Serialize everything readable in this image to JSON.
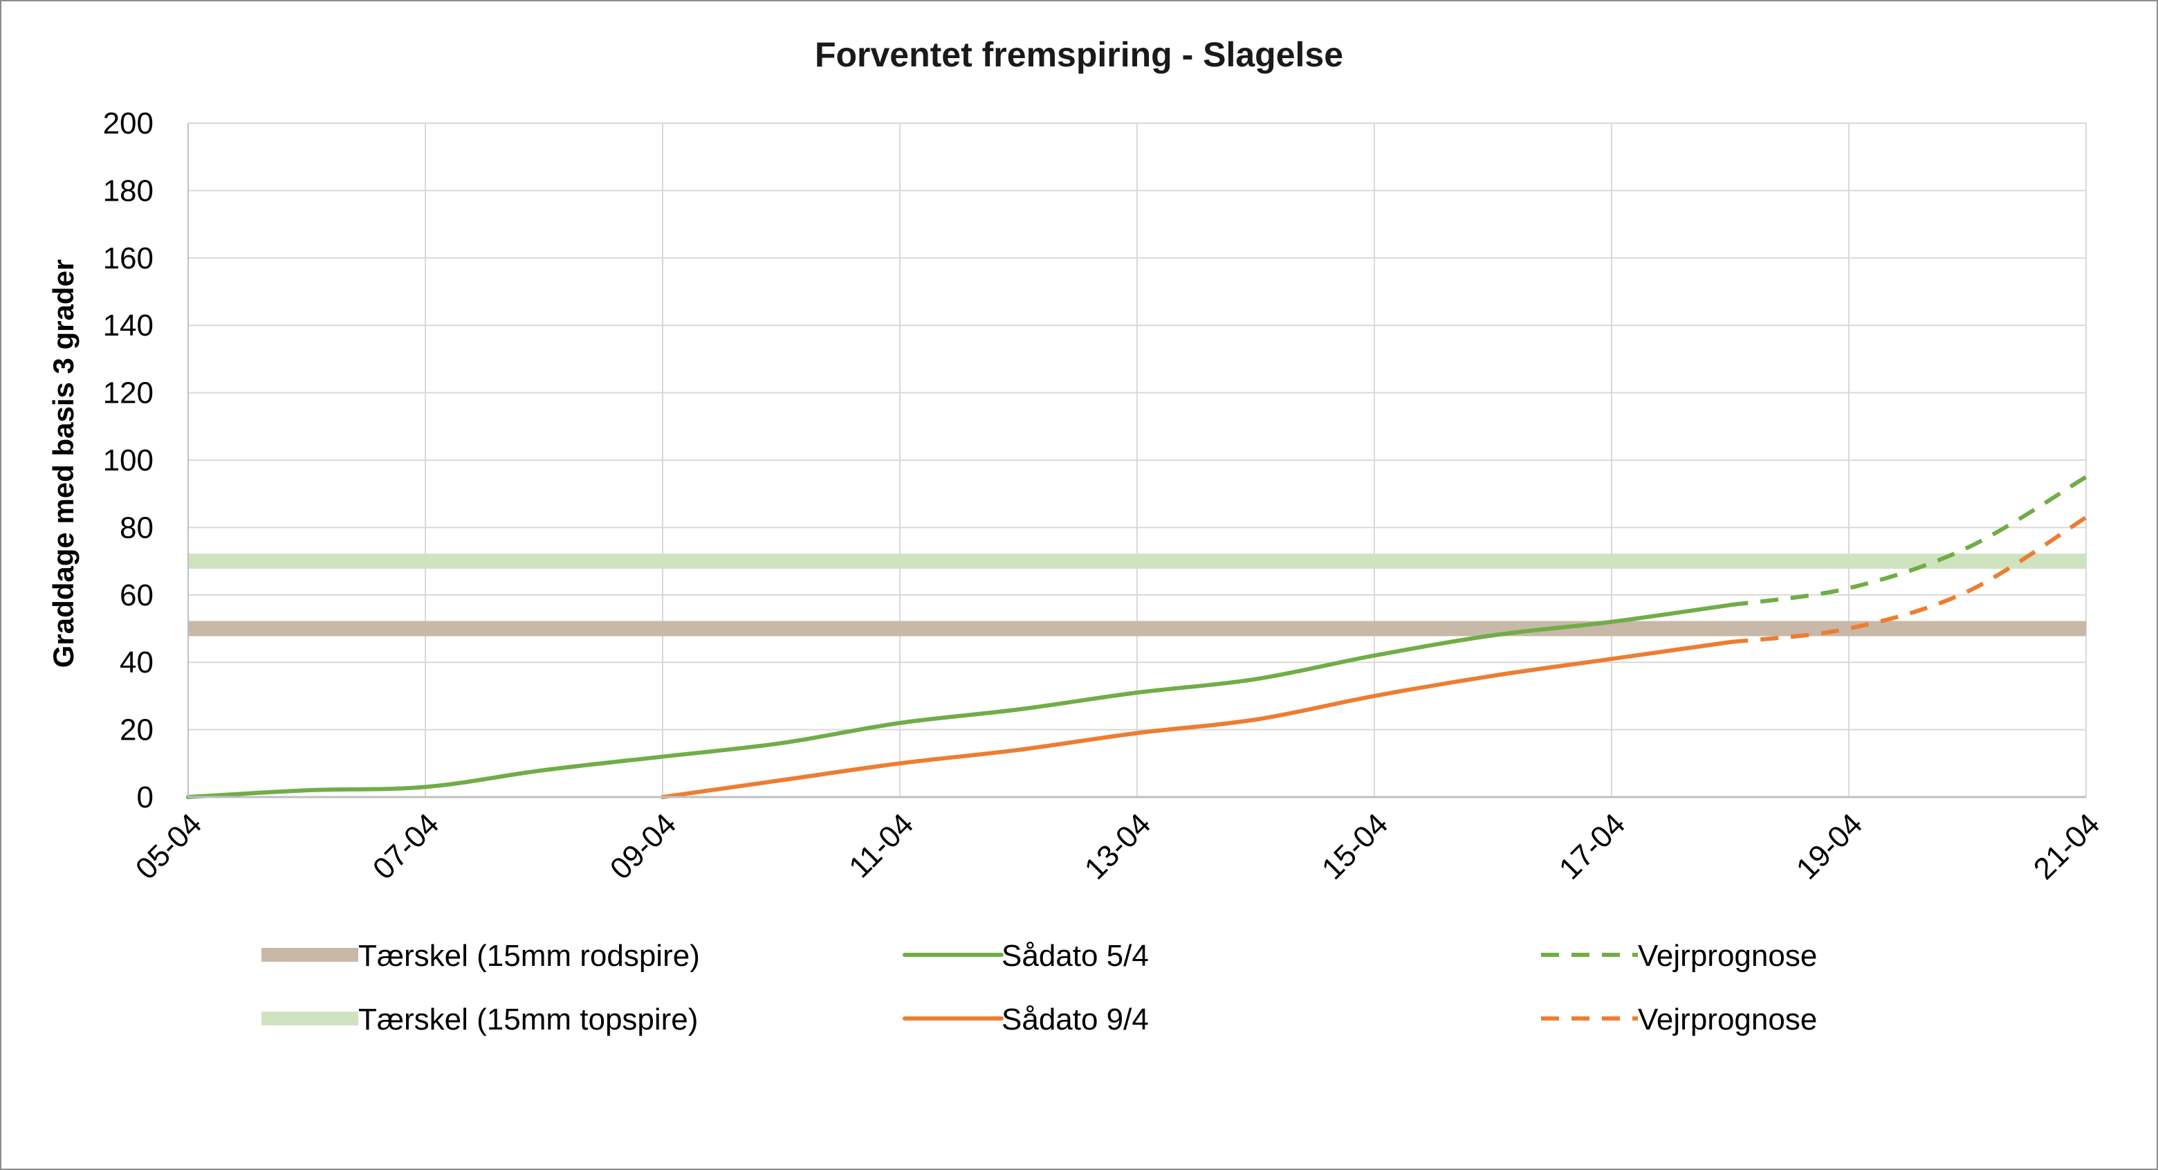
{
  "chart_data": {
    "type": "line",
    "title": "Forventet fremspiring - Slagelse",
    "ylabel": "Graddage med basis 3 grader",
    "xlabel": "",
    "x_ticks": [
      "05-04",
      "07-04",
      "09-04",
      "11-04",
      "13-04",
      "15-04",
      "17-04",
      "19-04",
      "21-04"
    ],
    "xlim": [
      "05-04",
      "21-04"
    ],
    "ylim": [
      0,
      200
    ],
    "y_ticks": [
      "0",
      "20",
      "40",
      "60",
      "80",
      "100",
      "120",
      "140",
      "160",
      "180",
      "200"
    ],
    "grid": true,
    "legend_placement": "bottom",
    "colors": {
      "brown_threshold": "#c8b8a8",
      "green_threshold": "#cfe3c0",
      "green_line": "#70ad47",
      "orange_line": "#ed7d31",
      "grid": "#d9d9d9",
      "axis": "#bfbfbf"
    },
    "series": [
      {
        "name": "Tærskel (15mm rodspire)",
        "style": "thick",
        "color": "#c8b8a8",
        "points": [
          [
            "05-04",
            50
          ],
          [
            "21-04",
            50
          ]
        ]
      },
      {
        "name": "Tærskel (15mm topspire)",
        "style": "thick",
        "color": "#cfe3c0",
        "points": [
          [
            "05-04",
            70
          ],
          [
            "21-04",
            70
          ]
        ]
      },
      {
        "name": "Sådato 5/4",
        "style": "solid",
        "color": "#70ad47",
        "points": [
          [
            "05-04",
            0
          ],
          [
            "06-04",
            2
          ],
          [
            "07-04",
            3
          ],
          [
            "08-04",
            8
          ],
          [
            "09-04",
            12
          ],
          [
            "10-04",
            16
          ],
          [
            "11-04",
            22
          ],
          [
            "12-04",
            26
          ],
          [
            "13-04",
            31
          ],
          [
            "14-04",
            35
          ],
          [
            "15-04",
            42
          ],
          [
            "16-04",
            48
          ],
          [
            "17-04",
            52
          ],
          [
            "18-04",
            57
          ]
        ]
      },
      {
        "name": "Vejrprognose",
        "style": "dashed",
        "color": "#70ad47",
        "points": [
          [
            "18-04",
            57
          ],
          [
            "19-04",
            62
          ],
          [
            "20-04",
            74
          ],
          [
            "21-04",
            95
          ]
        ]
      },
      {
        "name": "Sådato 9/4",
        "style": "solid",
        "color": "#ed7d31",
        "points": [
          [
            "09-04",
            0
          ],
          [
            "10-04",
            5
          ],
          [
            "11-04",
            10
          ],
          [
            "12-04",
            14
          ],
          [
            "13-04",
            19
          ],
          [
            "14-04",
            23
          ],
          [
            "15-04",
            30
          ],
          [
            "16-04",
            36
          ],
          [
            "17-04",
            41
          ],
          [
            "18-04",
            46
          ]
        ]
      },
      {
        "name": "Vejrprognose",
        "style": "dashed",
        "color": "#ed7d31",
        "points": [
          [
            "18-04",
            46
          ],
          [
            "19-04",
            50
          ],
          [
            "20-04",
            61
          ],
          [
            "21-04",
            83
          ]
        ]
      }
    ],
    "legend": [
      {
        "label": "Tærskel (15mm rodspire)",
        "series": 0
      },
      {
        "label": "Sådato 5/4",
        "series": 2
      },
      {
        "label": "Vejrprognose",
        "series": 3
      },
      {
        "label": "Tærskel (15mm topspire)",
        "series": 1
      },
      {
        "label": "Sådato 9/4",
        "series": 4
      },
      {
        "label": "Vejrprognose",
        "series": 5
      }
    ]
  }
}
